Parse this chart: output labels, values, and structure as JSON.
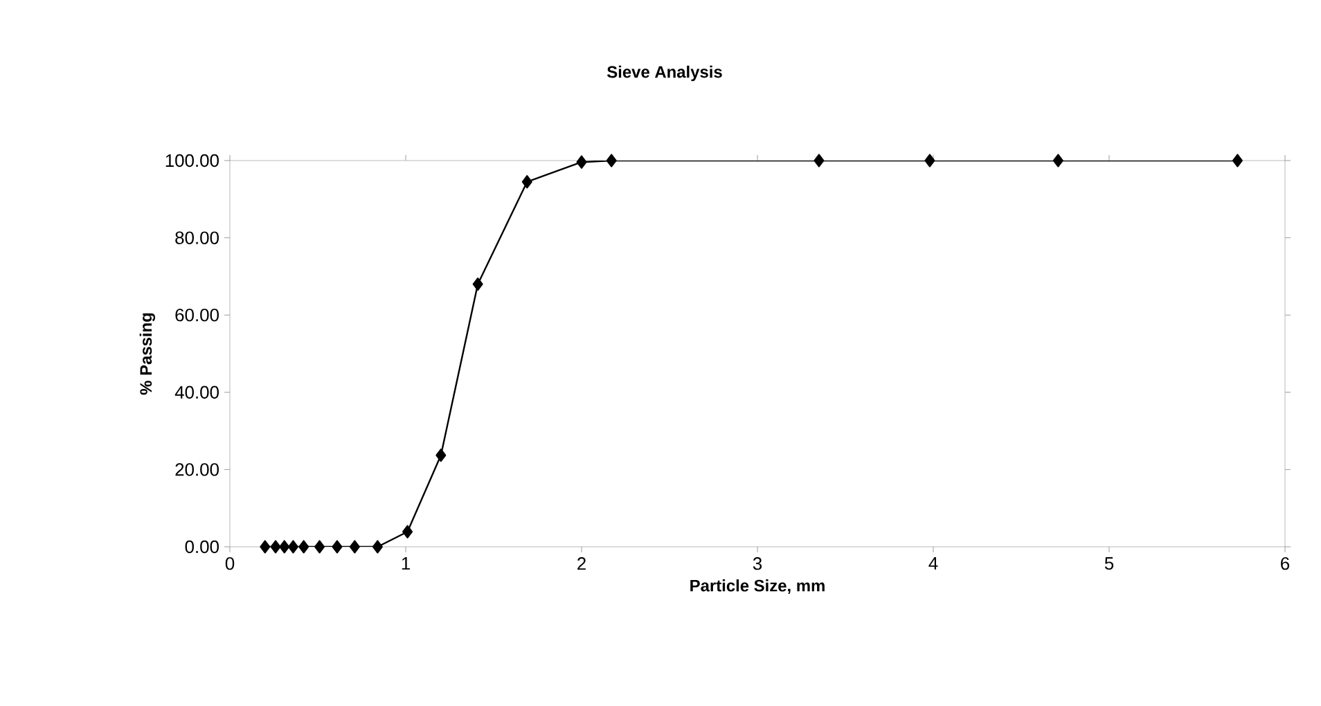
{
  "chart_data": {
    "type": "line",
    "title": "Sieve Analysis",
    "xlabel": "Particle Size, mm",
    "ylabel": "% Passing",
    "x": [
      0.2,
      0.26,
      0.31,
      0.36,
      0.42,
      0.51,
      0.61,
      0.71,
      0.84,
      1.01,
      1.2,
      1.41,
      1.69,
      2.0,
      2.17,
      3.35,
      3.98,
      4.71,
      5.73
    ],
    "series": [
      {
        "color": "#000000",
        "values": [
          0,
          0,
          0,
          0,
          0,
          0,
          0,
          0,
          0,
          3.9,
          23.7,
          68,
          94.5,
          99.6,
          100,
          100,
          100,
          100,
          100
        ]
      }
    ],
    "xlim": [
      0,
      6
    ],
    "xticks": [
      0,
      1,
      2,
      3,
      4,
      5,
      6
    ],
    "ylim": [
      0,
      100
    ],
    "yticks": [
      {
        "value": 0,
        "label": "0.00"
      },
      {
        "value": 20,
        "label": "20.00"
      },
      {
        "value": 40,
        "label": "40.00"
      },
      {
        "value": 60,
        "label": "60.00"
      },
      {
        "value": 80,
        "label": "80.00"
      },
      {
        "value": 100,
        "label": "100.00"
      }
    ],
    "marker": "diamond",
    "line_style": "solid"
  }
}
